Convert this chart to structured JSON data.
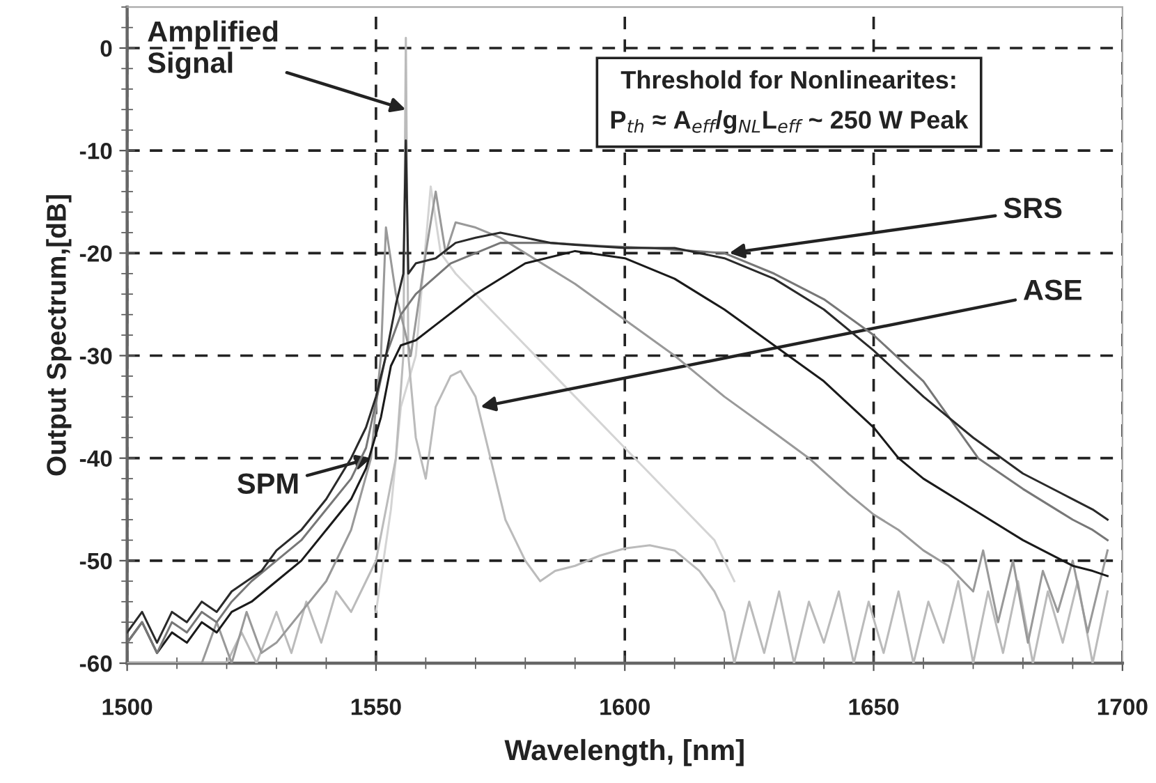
{
  "chart_data": {
    "type": "line",
    "xlabel": "Wavelength, [nm]",
    "ylabel": "Output Spectrum,[dB]",
    "xlim": [
      1500,
      1700
    ],
    "ylim": [
      -60,
      4
    ],
    "xticks": [
      1500,
      1550,
      1600,
      1650,
      1700
    ],
    "yticks": [
      -60,
      -50,
      -40,
      -30,
      -20,
      -10,
      0
    ],
    "grid": true,
    "line_style": "solid",
    "marker": "none",
    "series": [
      {
        "color": "#2a2a2a",
        "x": [
          1500,
          1503,
          1506,
          1509,
          1512,
          1515,
          1518,
          1521,
          1524,
          1527,
          1530,
          1535,
          1540,
          1545,
          1548,
          1550,
          1552,
          1554,
          1555.5,
          1556,
          1556.5,
          1558,
          1562,
          1566,
          1570,
          1575,
          1580,
          1585,
          1590,
          1600,
          1610,
          1620,
          1630,
          1640,
          1650,
          1660,
          1670,
          1680,
          1690,
          1694,
          1697
        ],
        "values": [
          -57,
          -55,
          -58,
          -55,
          -56,
          -54,
          -55,
          -53,
          -52,
          -51,
          -49,
          -47,
          -44,
          -40,
          -37,
          -34,
          -30,
          -25,
          -22,
          -9,
          -22,
          -21,
          -20.5,
          -19,
          -18.5,
          -18,
          -18.5,
          -19,
          -19.2,
          -19.5,
          -19.5,
          -20.5,
          -22.5,
          -25.5,
          -29.5,
          -34,
          -38,
          -41.5,
          -44,
          -45,
          -46
        ]
      },
      {
        "color": "#777777",
        "x": [
          1500,
          1503,
          1506,
          1509,
          1512,
          1515,
          1518,
          1521,
          1525,
          1530,
          1535,
          1540,
          1545,
          1548,
          1552,
          1555,
          1558,
          1565,
          1575,
          1585,
          1595,
          1605,
          1620,
          1630,
          1640,
          1650,
          1660,
          1671,
          1680,
          1690,
          1694,
          1697
        ],
        "values": [
          -58,
          -56,
          -59,
          -56,
          -57,
          -55,
          -56,
          -54,
          -52,
          -50,
          -48,
          -45,
          -42,
          -39,
          -30,
          -26,
          -24,
          -21,
          -19,
          -19,
          -19.3,
          -19.5,
          -20,
          -22,
          -24.5,
          -28,
          -32.5,
          -40,
          -43,
          -46,
          -47,
          -48
        ]
      },
      {
        "color": "#1a1a1a",
        "x": [
          1500,
          1503,
          1506,
          1509,
          1512,
          1515,
          1518,
          1521,
          1525,
          1530,
          1535,
          1540,
          1545,
          1548,
          1551,
          1553,
          1555,
          1558,
          1562,
          1570,
          1580,
          1590,
          1600,
          1610,
          1620,
          1630,
          1640,
          1650,
          1655,
          1660,
          1670,
          1680,
          1690,
          1694,
          1697
        ],
        "values": [
          -58,
          -56,
          -59,
          -57,
          -58,
          -56,
          -57,
          -55,
          -54,
          -52,
          -50,
          -47,
          -44,
          -41,
          -36,
          -31,
          -29,
          -28.5,
          -27,
          -24,
          -21,
          -19.8,
          -20.5,
          -22.5,
          -25.5,
          -29,
          -32.5,
          -37,
          -40,
          -42,
          -45,
          -48,
          -50.5,
          -51,
          -51.5
        ]
      },
      {
        "color": "#999999",
        "x": [
          1515,
          1518,
          1521,
          1524,
          1527,
          1530,
          1540,
          1545,
          1549,
          1551,
          1552,
          1554,
          1557,
          1560,
          1562,
          1564,
          1566,
          1570,
          1575,
          1580,
          1590,
          1600,
          1610,
          1620,
          1630,
          1637,
          1645,
          1650,
          1655,
          1660,
          1665,
          1670,
          1672,
          1675,
          1678,
          1681,
          1684,
          1687,
          1690,
          1693,
          1697
        ],
        "values": [
          -60,
          -56,
          -60,
          -55,
          -59,
          -58,
          -52,
          -47,
          -40,
          -30,
          -17.5,
          -24,
          -30,
          -20,
          -14,
          -20,
          -17,
          -17.5,
          -18.5,
          -20,
          -23,
          -26.5,
          -30,
          -34,
          -37.5,
          -40,
          -43.5,
          -45.5,
          -47,
          -49,
          -50.5,
          -53,
          -49,
          -56,
          -50,
          -58,
          -51,
          -55,
          -50,
          -57,
          -49
        ]
      },
      {
        "color": "#bbbbbb",
        "x": [
          1500,
          1520,
          1523,
          1526,
          1530,
          1533,
          1536,
          1539,
          1542,
          1545,
          1548,
          1550,
          1552,
          1554,
          1555.5,
          1556,
          1556.5,
          1558,
          1560,
          1562,
          1565,
          1567,
          1570,
          1573,
          1576,
          1580,
          1583,
          1586,
          1590,
          1595,
          1600,
          1605,
          1610,
          1615,
          1618,
          1620,
          1622,
          1625,
          1628,
          1631,
          1634,
          1637,
          1640,
          1643,
          1646,
          1649,
          1652,
          1655,
          1658,
          1661,
          1664,
          1667,
          1670,
          1673,
          1676,
          1679,
          1682,
          1685,
          1688,
          1691,
          1694,
          1697
        ],
        "values": [
          -60,
          -60,
          -57,
          -60,
          -55,
          -59,
          -54,
          -58,
          -53,
          -55,
          -52,
          -50,
          -45,
          -40,
          -30,
          1,
          -30,
          -38,
          -42,
          -35,
          -32,
          -31.5,
          -34,
          -40,
          -46,
          -50,
          -52,
          -51,
          -50.5,
          -49.5,
          -48.8,
          -48.5,
          -49,
          -51,
          -53,
          -55,
          -60,
          -54,
          -59,
          -53,
          -60,
          -54,
          -58,
          -53,
          -60,
          -54,
          -59,
          -53,
          -60,
          -54,
          -58,
          -52,
          -60,
          -53,
          -59,
          -52,
          -60,
          -53,
          -58,
          -52,
          -60,
          -53
        ]
      },
      {
        "color": "#d4d4d4",
        "x": [
          1550,
          1553,
          1555,
          1558,
          1561,
          1563,
          1566,
          1570,
          1580,
          1590,
          1600,
          1610,
          1618,
          1622
        ],
        "values": [
          -55,
          -45,
          -35,
          -30,
          -13.5,
          -20,
          -22,
          -24,
          -29,
          -34,
          -39,
          -44,
          -48,
          -52
        ]
      }
    ],
    "annotations": [
      {
        "text": "Amplified\nSignal",
        "x": 1556,
        "y": -6
      },
      "Threshold for Nonlinearites:\nP$_{th}$ ≈ A$_{eff}$/g$_{NL}$L$_{eff}$ ~ 250 W Peak",
      {
        "text": "SRS",
        "x": 1621,
        "y": -20
      },
      {
        "text": "ASE",
        "x": 1571,
        "y": -35
      },
      {
        "text": "SPM",
        "x": 1549,
        "y": -40
      }
    ]
  }
}
